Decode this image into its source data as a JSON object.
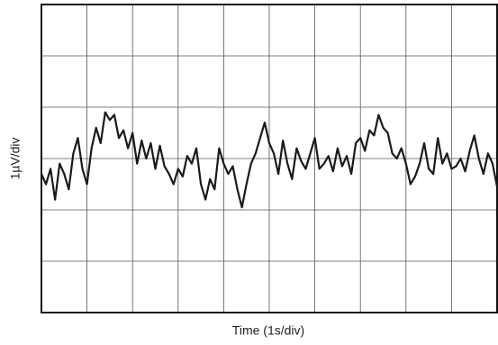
{
  "chart_data": {
    "type": "line",
    "xlabel": "Time (1s/div)",
    "ylabel": "1µV/div",
    "xlim": [
      0,
      10
    ],
    "ylim": [
      -3,
      3
    ],
    "xticks": [
      0,
      1,
      2,
      3,
      4,
      5,
      6,
      7,
      8,
      9,
      10
    ],
    "yticks": [
      -3,
      -2,
      -1,
      0,
      1,
      2,
      3
    ],
    "grid": true,
    "x": [
      0,
      0.1,
      0.2,
      0.3,
      0.4,
      0.5,
      0.6,
      0.7,
      0.8,
      0.9,
      1,
      1.1,
      1.2,
      1.3,
      1.4,
      1.5,
      1.6,
      1.7,
      1.8,
      1.9,
      2,
      2.1,
      2.2,
      2.3,
      2.4,
      2.5,
      2.6,
      2.7,
      2.8,
      2.9,
      3,
      3.1,
      3.2,
      3.3,
      3.4,
      3.5,
      3.6,
      3.7,
      3.8,
      3.9,
      4,
      4.1,
      4.2,
      4.3,
      4.4,
      4.5,
      4.6,
      4.7,
      4.8,
      4.9,
      5,
      5.1,
      5.2,
      5.3,
      5.4,
      5.5,
      5.6,
      5.7,
      5.8,
      5.9,
      6,
      6.1,
      6.2,
      6.3,
      6.4,
      6.5,
      6.6,
      6.7,
      6.8,
      6.9,
      7,
      7.1,
      7.2,
      7.3,
      7.4,
      7.5,
      7.6,
      7.7,
      7.8,
      7.9,
      8,
      8.1,
      8.2,
      8.3,
      8.4,
      8.5,
      8.6,
      8.7,
      8.8,
      8.9,
      9,
      9.1,
      9.2,
      9.3,
      9.4,
      9.5,
      9.6,
      9.7,
      9.8,
      9.9,
      10
    ],
    "series": [
      {
        "color": "#1a1a1a",
        "values": [
          -0.3,
          -0.5,
          -0.2,
          -0.8,
          -0.1,
          -0.3,
          -0.6,
          0.1,
          0.4,
          -0.2,
          -0.5,
          0.2,
          0.6,
          0.3,
          0.9,
          0.75,
          0.85,
          0.4,
          0.55,
          0.2,
          0.5,
          -0.1,
          0.35,
          0.0,
          0.3,
          -0.2,
          0.25,
          -0.15,
          -0.3,
          -0.5,
          -0.2,
          -0.35,
          0.05,
          -0.1,
          0.2,
          -0.5,
          -0.8,
          -0.4,
          -0.6,
          0.2,
          -0.1,
          -0.3,
          -0.15,
          -0.6,
          -0.95,
          -0.5,
          -0.1,
          0.1,
          0.4,
          0.7,
          0.3,
          0.1,
          -0.3,
          0.35,
          -0.1,
          -0.4,
          0.2,
          -0.05,
          -0.2,
          0.1,
          0.4,
          -0.2,
          -0.1,
          0.05,
          -0.25,
          0.2,
          -0.15,
          0.05,
          -0.3,
          0.3,
          0.4,
          0.15,
          0.55,
          0.45,
          0.85,
          0.6,
          0.5,
          0.1,
          0.0,
          0.2,
          -0.1,
          -0.5,
          -0.35,
          -0.1,
          0.3,
          -0.2,
          -0.3,
          0.4,
          -0.1,
          0.1,
          -0.2,
          -0.15,
          0.0,
          -0.25,
          0.15,
          0.45,
          0.0,
          -0.3,
          0.1,
          -0.1,
          -0.55
        ]
      }
    ]
  }
}
